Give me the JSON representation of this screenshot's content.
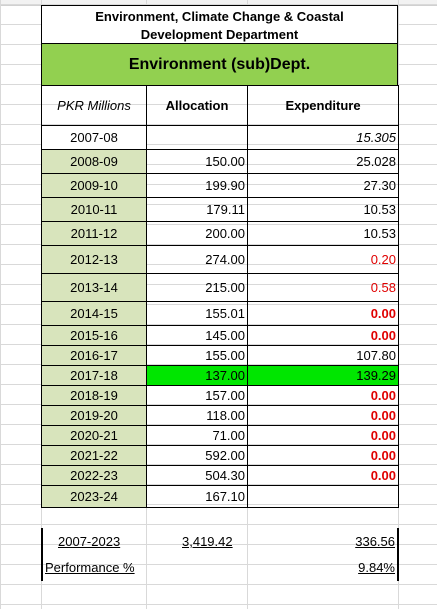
{
  "title": {
    "line1": "Environment, Climate Change & Coastal",
    "line2": "Development Department"
  },
  "subtitle": "Environment (sub)Dept.",
  "headers": {
    "col1": "PKR Millions",
    "col2": "Allocation",
    "col3": "Expenditure"
  },
  "rows": [
    {
      "year": "2007-08",
      "allocation": "",
      "expenditure": "15.305"
    },
    {
      "year": "2008-09",
      "allocation": "150.00",
      "expenditure": "25.028"
    },
    {
      "year": "2009-10",
      "allocation": "199.90",
      "expenditure": "27.30"
    },
    {
      "year": "2010-11",
      "allocation": "179.11",
      "expenditure": "10.53"
    },
    {
      "year": "2011-12",
      "allocation": "200.00",
      "expenditure": "10.53"
    },
    {
      "year": "2012-13",
      "allocation": "274.00",
      "expenditure": "0.20"
    },
    {
      "year": "2013-14",
      "allocation": "215.00",
      "expenditure": "0.58"
    },
    {
      "year": "2014-15",
      "allocation": "155.01",
      "expenditure": "0.00"
    },
    {
      "year": "2015-16",
      "allocation": "145.00",
      "expenditure": "0.00"
    },
    {
      "year": "2016-17",
      "allocation": "155.00",
      "expenditure": "107.80"
    },
    {
      "year": "2017-18",
      "allocation": "137.00",
      "expenditure": "139.29"
    },
    {
      "year": "2018-19",
      "allocation": "157.00",
      "expenditure": "0.00"
    },
    {
      "year": "2019-20",
      "allocation": "118.00",
      "expenditure": "0.00"
    },
    {
      "year": "2020-21",
      "allocation": "71.00",
      "expenditure": "0.00"
    },
    {
      "year": "2021-22",
      "allocation": "592.00",
      "expenditure": "0.00"
    },
    {
      "year": "2022-23",
      "allocation": "504.30",
      "expenditure": "0.00"
    },
    {
      "year": "2023-24",
      "allocation": "167.10",
      "expenditure": ""
    }
  ],
  "totals": {
    "label": "2007-2023",
    "allocation": "3,419.42",
    "expenditure": "336.56"
  },
  "performance": {
    "label": "Performance %",
    "value": "9.84%"
  },
  "colors": {
    "header_green": "#92d050",
    "year_fill": "#d8e4bc",
    "highlight": "#00e600",
    "red_text": "#e00000"
  }
}
